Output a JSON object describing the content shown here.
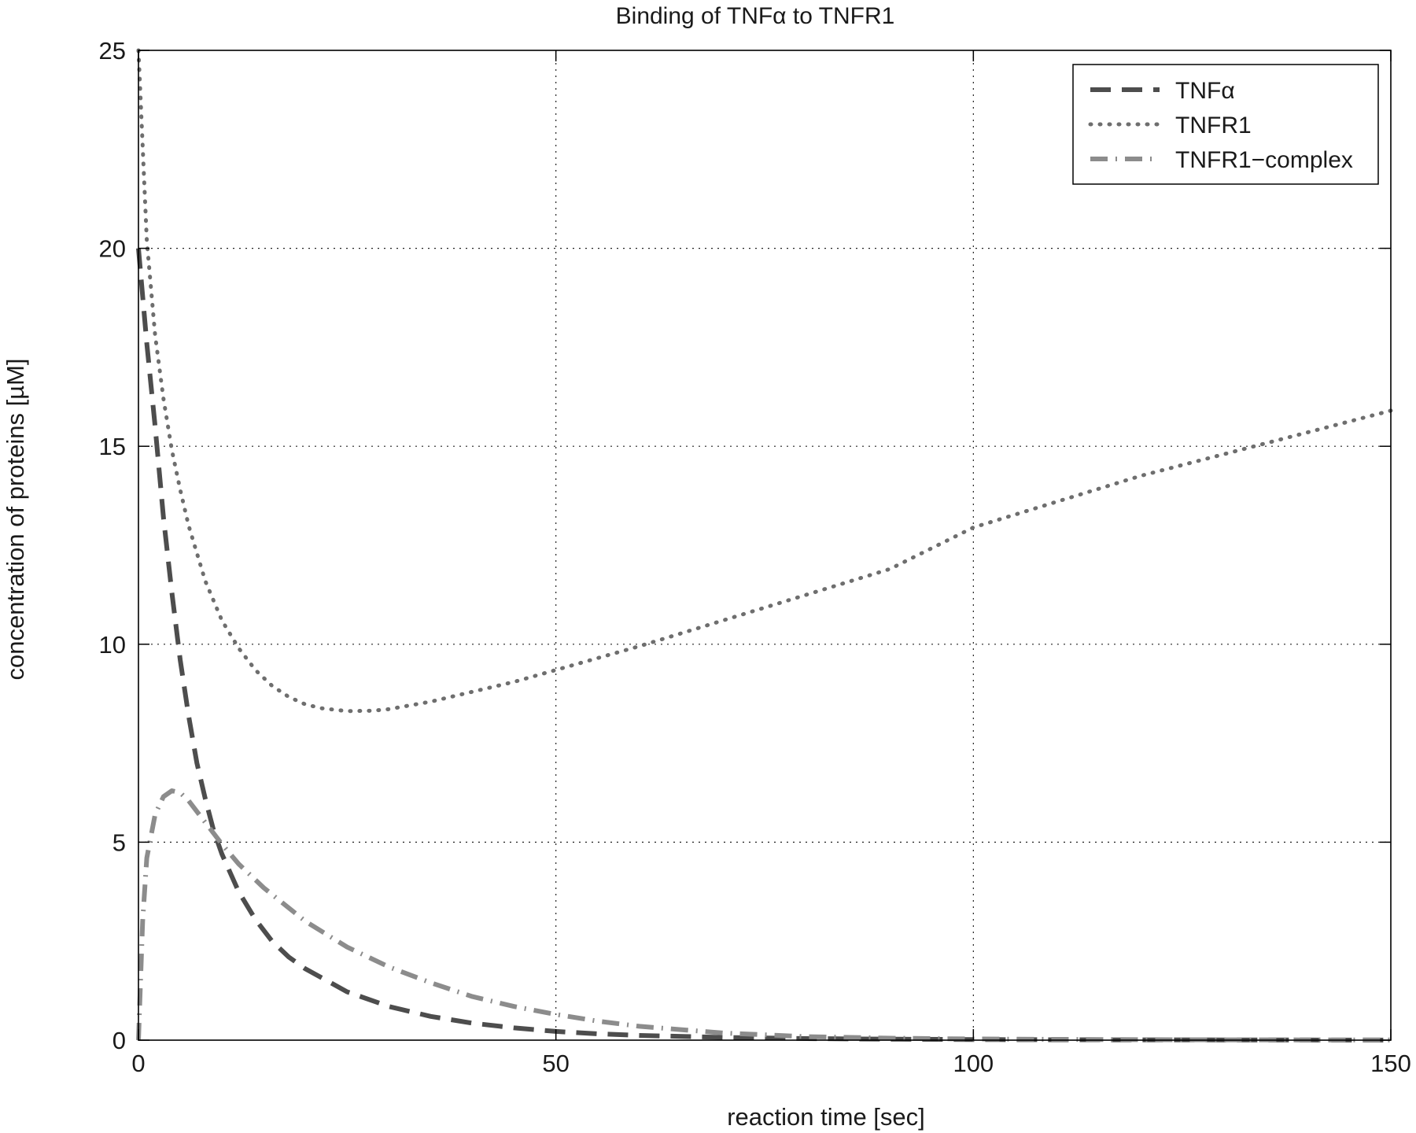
{
  "chart_data": {
    "type": "line",
    "title": "Binding of TNFα to TNFR1",
    "xlabel": "reaction time [sec]",
    "ylabel": "concentration of proteins [µM]",
    "xlim": [
      0,
      150
    ],
    "ylim": [
      0,
      25
    ],
    "xticks": [
      0,
      50,
      100,
      150
    ],
    "yticks": [
      0,
      5,
      10,
      15,
      20,
      25
    ],
    "grid": true,
    "legend_position": "top-right",
    "series": [
      {
        "name": "TNFα",
        "style": "dashed",
        "color": "#4d4d4d",
        "x": [
          0,
          1,
          2,
          3,
          4,
          5,
          6,
          7,
          8,
          9,
          10,
          12,
          14,
          16,
          18,
          20,
          25,
          30,
          35,
          40,
          45,
          50,
          55,
          60,
          70,
          80,
          90,
          100,
          110,
          120,
          130,
          140,
          150
        ],
        "y": [
          20.0,
          17.6,
          15.5,
          13.2,
          11.3,
          9.6,
          8.2,
          7.0,
          6.1,
          5.3,
          4.7,
          3.75,
          3.05,
          2.5,
          2.1,
          1.8,
          1.22,
          0.85,
          0.6,
          0.43,
          0.31,
          0.22,
          0.16,
          0.12,
          0.07,
          0.04,
          0.025,
          0.015,
          0.01,
          0.007,
          0.005,
          0.003,
          0.002
        ]
      },
      {
        "name": "TNFR1",
        "style": "dotted",
        "color": "#6e6e6e",
        "x": [
          0,
          1,
          2,
          3,
          4,
          5,
          6,
          8,
          10,
          12,
          14,
          16,
          18,
          20,
          22,
          25,
          28,
          30,
          35,
          40,
          45,
          50,
          60,
          70,
          80,
          90,
          100,
          110,
          120,
          130,
          140,
          150
        ],
        "y": [
          25.0,
          20.2,
          17.8,
          16.2,
          14.9,
          13.9,
          13.0,
          11.6,
          10.6,
          9.9,
          9.35,
          8.95,
          8.67,
          8.48,
          8.38,
          8.31,
          8.32,
          8.36,
          8.55,
          8.8,
          9.05,
          9.35,
          9.95,
          10.6,
          11.25,
          11.9,
          12.95,
          13.6,
          14.25,
          14.8,
          15.35,
          15.9
        ]
      },
      {
        "name": "TNFR1−complex",
        "style": "dashdot",
        "color": "#8c8c8c",
        "x": [
          0,
          0.5,
          1,
          2,
          3,
          4,
          5,
          6,
          8,
          10,
          12,
          15,
          20,
          25,
          30,
          35,
          40,
          45,
          50,
          55,
          60,
          70,
          80,
          90,
          100,
          110,
          120,
          130,
          140,
          150
        ],
        "y": [
          0.0,
          3.0,
          4.6,
          5.7,
          6.15,
          6.3,
          6.25,
          6.05,
          5.5,
          4.95,
          4.45,
          3.85,
          3.0,
          2.35,
          1.85,
          1.45,
          1.1,
          0.85,
          0.65,
          0.48,
          0.35,
          0.18,
          0.09,
          0.05,
          0.03,
          0.02,
          0.012,
          0.008,
          0.005,
          0.003
        ]
      }
    ]
  }
}
